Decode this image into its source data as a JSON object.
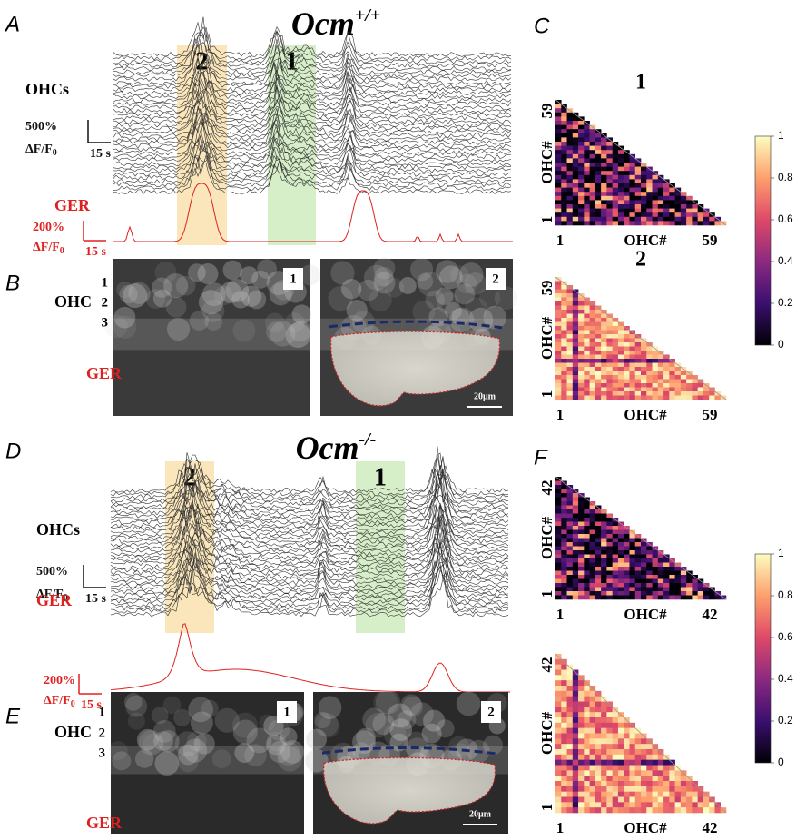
{
  "A": {
    "letter": "A",
    "title": {
      "base": "Ocm",
      "sup": "+/+"
    },
    "box_labels": [
      "2",
      "1"
    ],
    "ohc_label": "OHCs",
    "ohc_scale": {
      "amount": "500%",
      "unit": "ΔF/F",
      "sub": "0",
      "time": "15 s"
    },
    "ger_label": "GER",
    "ger_scale": {
      "amount": "200%",
      "unit": "ΔF/F",
      "sub": "0",
      "time": "15 s"
    }
  },
  "B": {
    "letter": "B",
    "rows": [
      "1",
      "2",
      "3"
    ],
    "ohc_label": "OHC",
    "ger_label": "GER",
    "image_labels": [
      "1",
      "2"
    ],
    "scale_bar": "20μm"
  },
  "C": {
    "letter": "C",
    "matrices": [
      {
        "title": "1",
        "axis_label": "OHC#",
        "first": "1",
        "last": "59"
      },
      {
        "title": "2",
        "axis_label": "OHC#",
        "first": "1",
        "last": "59"
      }
    ],
    "colorbar_ticks": [
      0,
      0.2,
      0.4,
      0.6,
      0.8,
      1
    ]
  },
  "D": {
    "letter": "D",
    "title": {
      "base": "Ocm",
      "sup": "-/-"
    },
    "box_labels": [
      "2",
      "1"
    ],
    "ohc_label": "OHCs",
    "ohc_scale": {
      "amount": "500%",
      "unit": "ΔF/F",
      "sub": "0",
      "time": "15 s"
    },
    "ger_label": "GER",
    "ger_scale": {
      "amount": "200%",
      "unit": "ΔF/F",
      "sub": "0",
      "time": "15 s"
    }
  },
  "E": {
    "letter": "E",
    "rows": [
      "1",
      "2",
      "3"
    ],
    "ohc_label": "OHC",
    "ger_label": "GER",
    "image_labels": [
      "1",
      "2"
    ],
    "scale_bar": "20μm"
  },
  "F": {
    "letter": "F",
    "matrices": [
      {
        "axis_label": "OHC#",
        "first": "1",
        "last": "42"
      },
      {
        "axis_label": "OHC#",
        "first": "1",
        "last": "42"
      }
    ],
    "colorbar_ticks": [
      0,
      0.2,
      0.4,
      0.6,
      0.8,
      1
    ]
  }
}
